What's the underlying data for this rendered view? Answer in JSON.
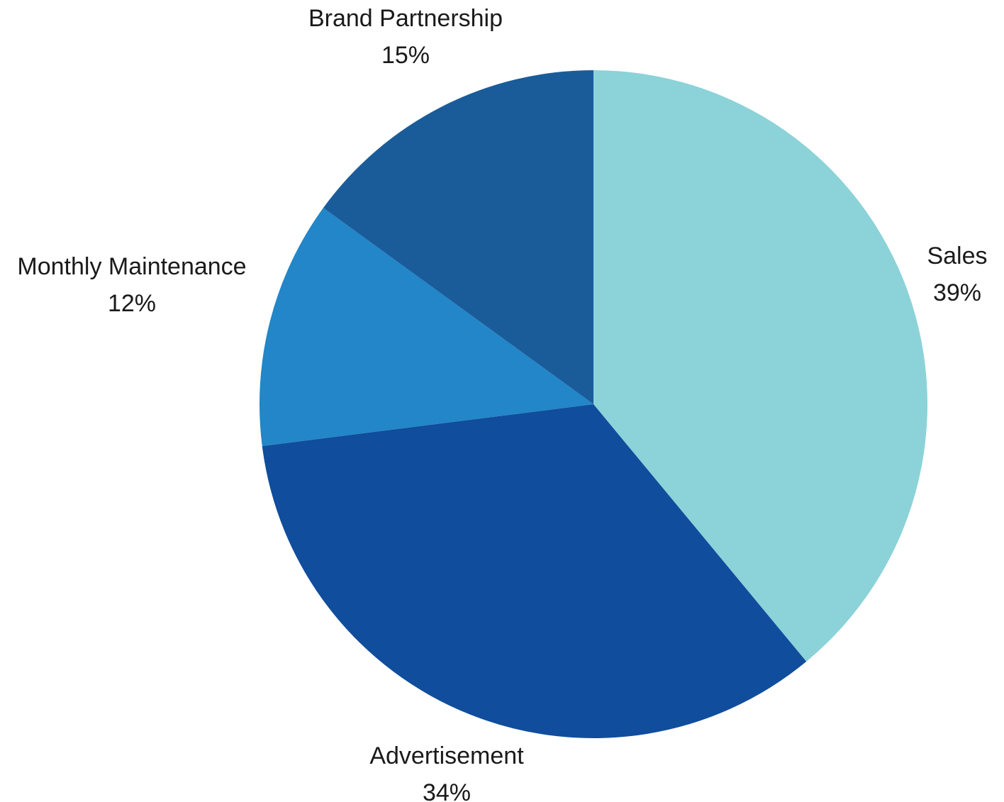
{
  "chart_data": {
    "type": "pie",
    "title": "",
    "start": "12 o'clock",
    "direction": "clockwise",
    "slices": [
      {
        "label": "Sales",
        "value": 39,
        "value_label": "39%",
        "color": "#8cd2d9"
      },
      {
        "label": "Advertisement",
        "value": 34,
        "value_label": "34%",
        "color": "#104d9c"
      },
      {
        "label": "Monthly Maintenance",
        "value": 12,
        "value_label": "12%",
        "color": "#2286c8"
      },
      {
        "label": "Brand Partnership",
        "value": 15,
        "value_label": "15%",
        "color": "#1a5c9a"
      }
    ]
  }
}
